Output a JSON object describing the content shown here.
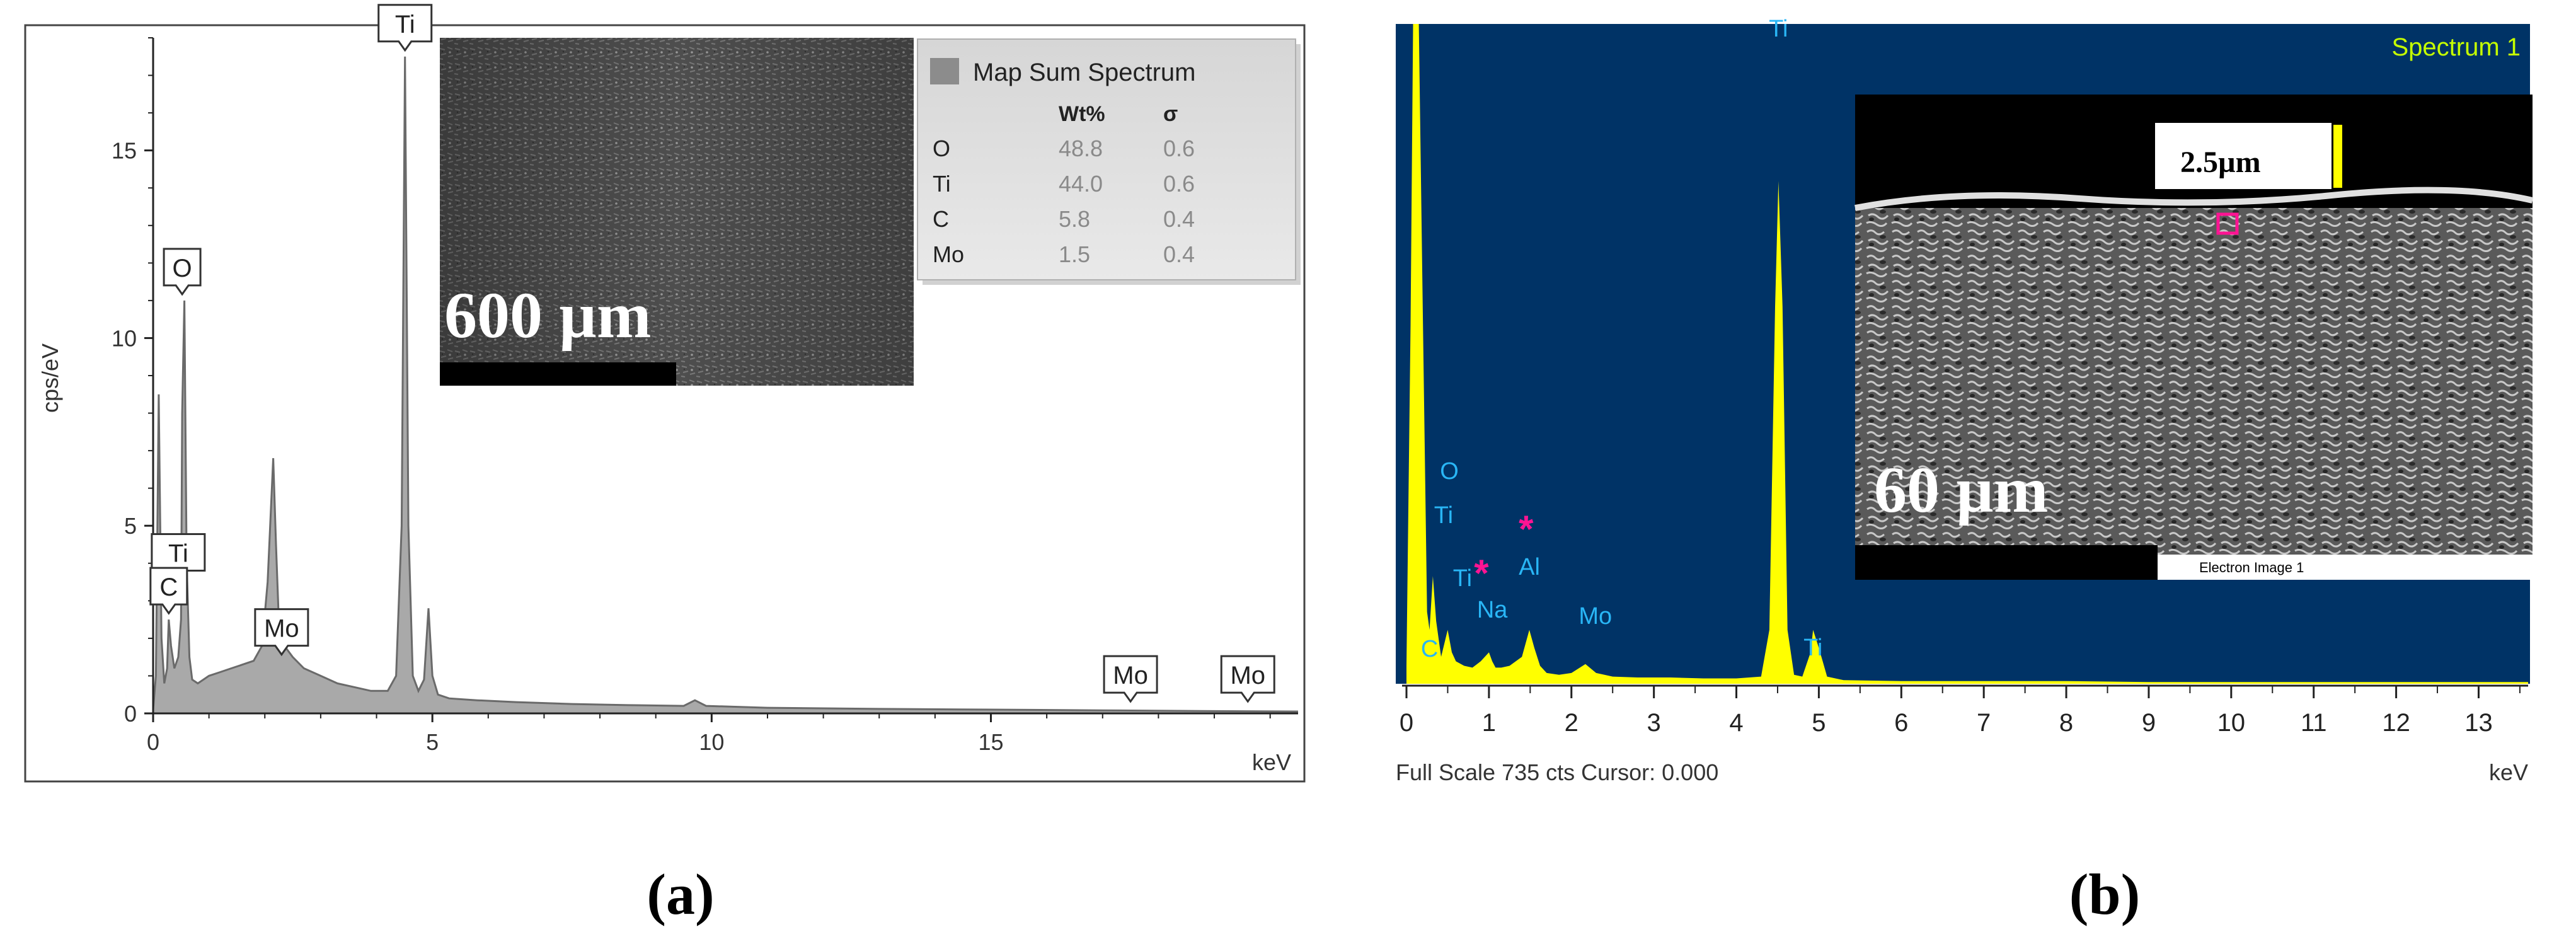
{
  "chart_data": [
    {
      "type": "area",
      "panel": "(a)",
      "ylabel": "cps/eV",
      "xunit": "keV",
      "xlim": [
        0,
        20.5
      ],
      "ylim": [
        0,
        18
      ],
      "xticks": [
        0,
        5,
        10,
        15
      ],
      "yticks": [
        0,
        5,
        10,
        15
      ],
      "series": [
        {
          "x": [
            0.0,
            0.05,
            0.1,
            0.15,
            0.2,
            0.25,
            0.28,
            0.32,
            0.38,
            0.45,
            0.5,
            0.52,
            0.56,
            0.6,
            0.65,
            0.7,
            0.8,
            0.9,
            1.0,
            1.2,
            1.4,
            1.6,
            1.8,
            1.95,
            2.05,
            2.15,
            2.2,
            2.25,
            2.35,
            2.5,
            2.7,
            3.0,
            3.3,
            3.6,
            3.9,
            4.2,
            4.35,
            4.45,
            4.51,
            4.57,
            4.65,
            4.75,
            4.85,
            4.93,
            5.0,
            5.1,
            5.3,
            5.8,
            6.5,
            7.5,
            8.5,
            9.5,
            9.7,
            9.9,
            11,
            13,
            15,
            17,
            19,
            20.5
          ],
          "y": [
            0.1,
            1.0,
            8.5,
            2.0,
            0.8,
            1.2,
            2.5,
            1.8,
            1.2,
            1.5,
            2.5,
            8.0,
            11.0,
            4.0,
            1.5,
            0.9,
            0.8,
            0.9,
            1.0,
            1.1,
            1.2,
            1.3,
            1.4,
            1.8,
            3.5,
            6.8,
            4.5,
            2.5,
            1.8,
            1.5,
            1.2,
            1.0,
            0.8,
            0.7,
            0.6,
            0.6,
            1.0,
            5.0,
            17.5,
            5.0,
            1.0,
            0.6,
            0.9,
            2.8,
            1.0,
            0.5,
            0.4,
            0.35,
            0.3,
            0.25,
            0.22,
            0.2,
            0.35,
            0.2,
            0.15,
            0.12,
            0.1,
            0.08,
            0.06,
            0.05
          ]
        }
      ],
      "peak_labels": [
        {
          "label": "Ti",
          "x": 4.51,
          "y": 17.5
        },
        {
          "label": "O",
          "x": 0.52,
          "y": 11.0
        },
        {
          "label": "Ti",
          "x": 0.45,
          "y": 3.4
        },
        {
          "label": "C",
          "x": 0.28,
          "y": 2.5
        },
        {
          "label": "Mo",
          "x": 2.3,
          "y": 1.4
        },
        {
          "label": "Mo",
          "x": 17.5,
          "y": 0.15
        },
        {
          "label": "Mo",
          "x": 19.6,
          "y": 0.15
        }
      ],
      "table": {
        "title": "Map Sum Spectrum",
        "columns": [
          "Wt%",
          "σ"
        ],
        "rows": [
          {
            "element": "O",
            "wt": "48.8",
            "sigma": "0.6"
          },
          {
            "element": "Ti",
            "wt": "44.0",
            "sigma": "0.6"
          },
          {
            "element": "C",
            "wt": "5.8",
            "sigma": "0.4"
          },
          {
            "element": "Mo",
            "wt": "1.5",
            "sigma": "0.4"
          }
        ]
      },
      "inset_scale": "600 µm"
    },
    {
      "type": "area",
      "panel": "(b)",
      "xunit": "keV",
      "xlim": [
        0,
        13.6
      ],
      "xticks": [
        0,
        1,
        2,
        3,
        4,
        5,
        6,
        7,
        8,
        9,
        10,
        11,
        12,
        13
      ],
      "spectrum_label": "Spectrum 1",
      "footer": "Full Scale 735 cts Cursor: 0.000",
      "series": [
        {
          "x": [
            0.0,
            0.05,
            0.08,
            0.1,
            0.15,
            0.2,
            0.25,
            0.28,
            0.32,
            0.36,
            0.42,
            0.46,
            0.5,
            0.55,
            0.6,
            0.7,
            0.8,
            0.9,
            1.0,
            1.04,
            1.08,
            1.15,
            1.25,
            1.4,
            1.49,
            1.55,
            1.62,
            1.7,
            1.85,
            2.0,
            2.17,
            2.3,
            2.5,
            2.8,
            3.2,
            3.6,
            4.0,
            4.3,
            4.4,
            4.47,
            4.51,
            4.56,
            4.62,
            4.7,
            4.8,
            4.9,
            4.93,
            5.0,
            5.1,
            5.3,
            6,
            7,
            8,
            9,
            10,
            11,
            12,
            13,
            13.6
          ],
          "y": [
            20,
            400,
            735,
            735,
            735,
            400,
            80,
            60,
            120,
            70,
            30,
            45,
            60,
            35,
            25,
            20,
            18,
            25,
            35,
            25,
            18,
            18,
            20,
            30,
            60,
            40,
            20,
            12,
            10,
            12,
            22,
            12,
            8,
            7,
            7,
            6,
            6,
            8,
            60,
            420,
            560,
            420,
            60,
            10,
            8,
            35,
            60,
            40,
            8,
            4,
            3,
            3,
            3,
            2,
            2,
            2,
            2,
            2,
            2
          ]
        }
      ],
      "peak_labels": [
        {
          "label": "Ti",
          "x": 4.51
        },
        {
          "label": "O",
          "x": 0.52
        },
        {
          "label": "Ti",
          "x": 0.45
        },
        {
          "label": "Ti",
          "x": 0.45
        },
        {
          "label": "C",
          "x": 0.28
        },
        {
          "label": "Na",
          "x": 1.04
        },
        {
          "label": "Al",
          "x": 1.49
        },
        {
          "label": "Mo",
          "x": 2.29
        },
        {
          "label": "Ti",
          "x": 4.93
        }
      ],
      "markers": [
        "*",
        "*"
      ],
      "inset_scale": "60 µm",
      "inset_scale_small": "2.5µm",
      "inset_caption": "Electron Image 1"
    }
  ],
  "captions": {
    "a": "(a)",
    "b": "(b)"
  },
  "colors": {
    "a_fill": "#a9a9a9",
    "a_line": "#707070",
    "b_bg": "#003366",
    "b_spectrum": "#ffff00",
    "b_labels": "#29b6f6",
    "b_marker": "#ff1493",
    "b_spec_title": "#c6ff00"
  }
}
